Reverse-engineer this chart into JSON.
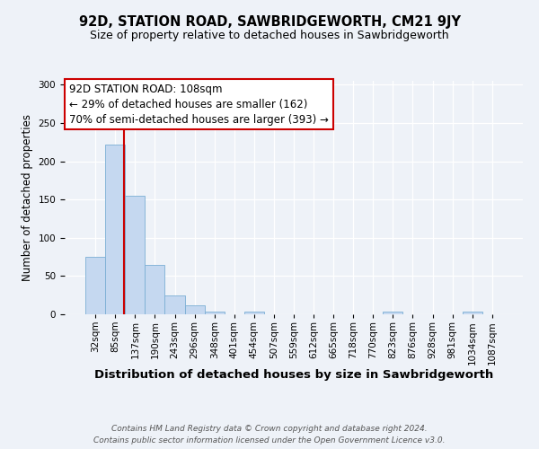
{
  "title": "92D, STATION ROAD, SAWBRIDGEWORTH, CM21 9JY",
  "subtitle": "Size of property relative to detached houses in Sawbridgeworth",
  "xlabel": "Distribution of detached houses by size in Sawbridgeworth",
  "ylabel": "Number of detached properties",
  "footer_line1": "Contains HM Land Registry data © Crown copyright and database right 2024.",
  "footer_line2": "Contains public sector information licensed under the Open Government Licence v3.0.",
  "bin_labels": [
    "32sqm",
    "85sqm",
    "137sqm",
    "190sqm",
    "243sqm",
    "296sqm",
    "348sqm",
    "401sqm",
    "454sqm",
    "507sqm",
    "559sqm",
    "612sqm",
    "665sqm",
    "718sqm",
    "770sqm",
    "823sqm",
    "876sqm",
    "928sqm",
    "981sqm",
    "1034sqm",
    "1087sqm"
  ],
  "bar_heights": [
    75,
    222,
    155,
    65,
    25,
    12,
    3,
    0,
    3,
    0,
    0,
    0,
    0,
    0,
    0,
    3,
    0,
    0,
    0,
    3,
    0
  ],
  "bar_color": "#c5d8f0",
  "bar_edge_color": "#7bafd4",
  "bar_width": 1.0,
  "ylim": [
    0,
    305
  ],
  "yticks": [
    0,
    50,
    100,
    150,
    200,
    250,
    300
  ],
  "vline_x": 108,
  "vline_color": "#cc0000",
  "annotation_text": "92D STATION ROAD: 108sqm\n← 29% of detached houses are smaller (162)\n70% of semi-detached houses are larger (393) →",
  "annotation_box_color": "#ffffff",
  "annotation_box_edge": "#cc0000",
  "annotation_fontsize": 8.5,
  "title_fontsize": 10.5,
  "subtitle_fontsize": 9,
  "xlabel_fontsize": 9.5,
  "ylabel_fontsize": 8.5,
  "tick_fontsize": 7.5,
  "footer_fontsize": 6.5,
  "bg_color": "#eef2f8",
  "plot_bg_color": "#eef2f8"
}
